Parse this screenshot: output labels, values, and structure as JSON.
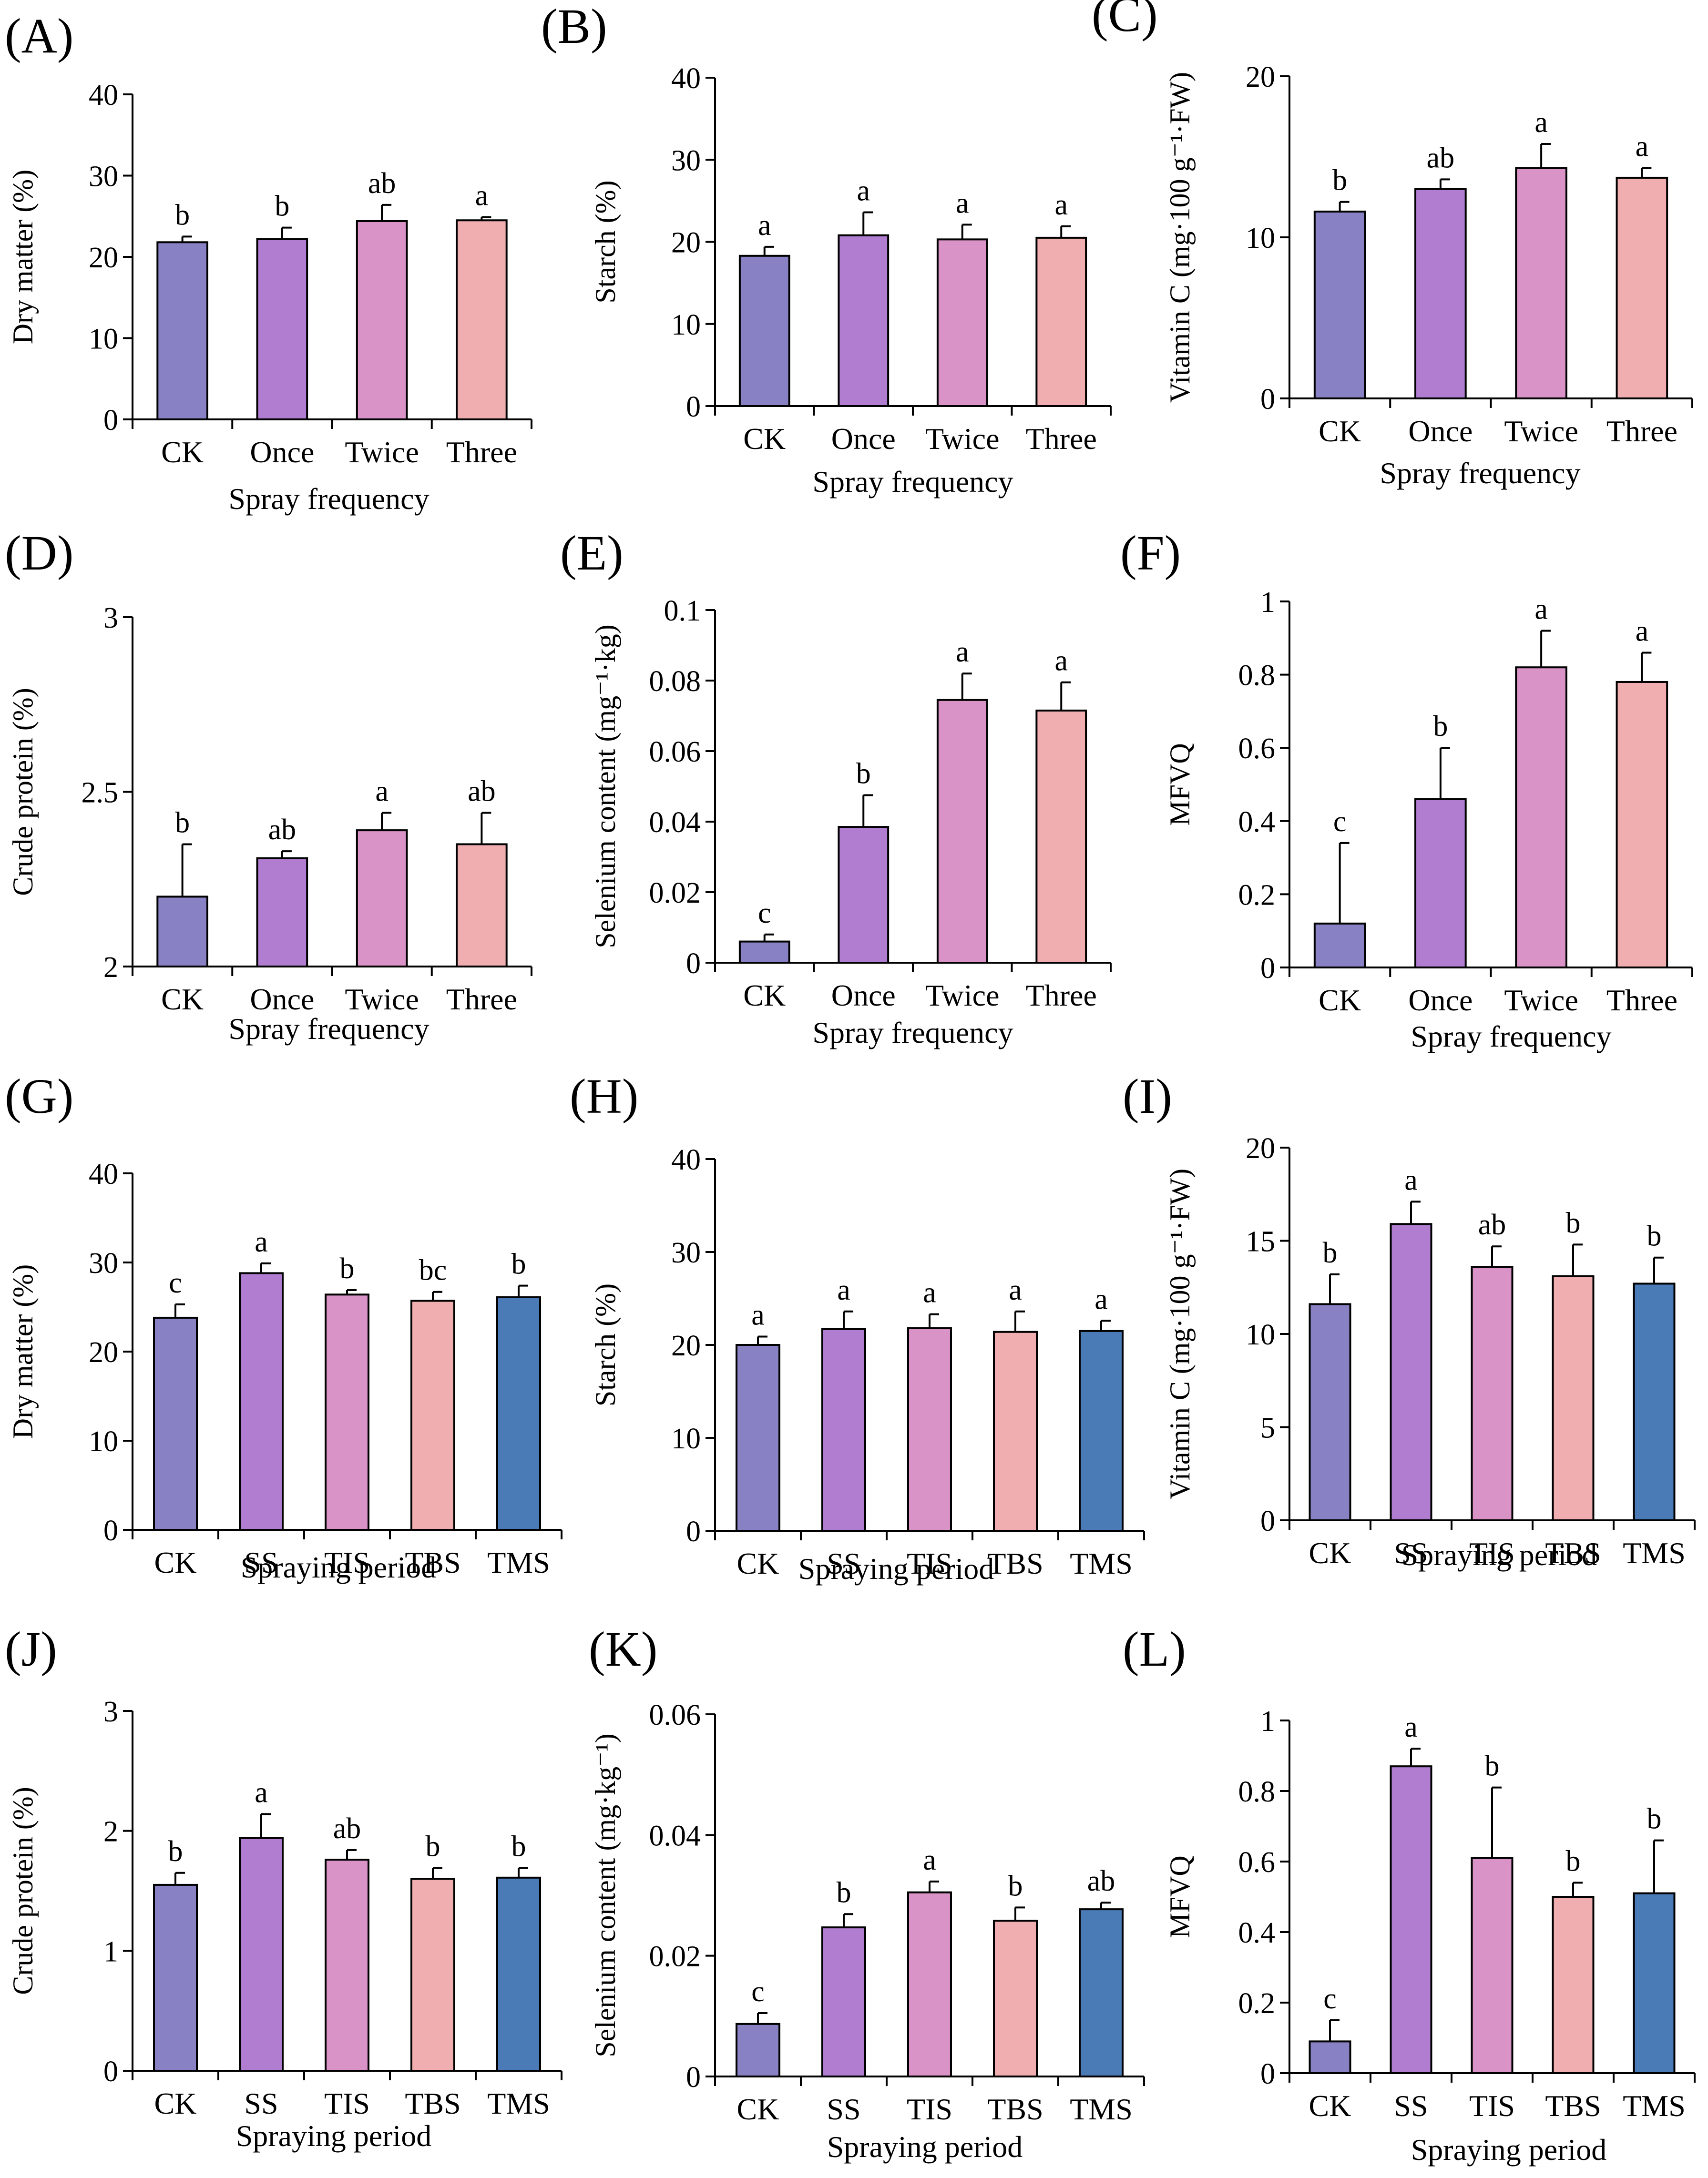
{
  "figure": {
    "panel_count": 12
  },
  "colors": {
    "CK": "#8882c4",
    "Once": "#b07dd1",
    "Twice": "#d993c7",
    "Three": "#f0aeb0",
    "SS": "#b07dd1",
    "TIS": "#d993c7",
    "TBS": "#f0aeb0",
    "TMS": "#4a7bb7"
  },
  "chart_data": [
    {
      "panel": "(A)",
      "type": "bar",
      "xlabel": "Spray frequency",
      "ylabel": "Dry matter (%)",
      "ylim": [
        0,
        40
      ],
      "yticks": [
        "0",
        "10",
        "20",
        "30",
        "40"
      ],
      "categories": [
        "CK",
        "Once",
        "Twice",
        "Three"
      ],
      "values": [
        21.8,
        22.2,
        24.4,
        24.5
      ],
      "errors": [
        0.7,
        1.4,
        2.0,
        0.4
      ],
      "letters": [
        "b",
        "b",
        "ab",
        "a"
      ]
    },
    {
      "panel": "(B)",
      "type": "bar",
      "xlabel": "Spray frequency",
      "ylabel": "Starch (%)",
      "ylim": [
        0,
        40
      ],
      "yticks": [
        "0",
        "10",
        "20",
        "30",
        "40"
      ],
      "categories": [
        "CK",
        "Once",
        "Twice",
        "Three"
      ],
      "values": [
        18.3,
        20.8,
        20.3,
        20.5
      ],
      "errors": [
        1.1,
        2.8,
        1.8,
        1.4
      ],
      "letters": [
        "a",
        "a",
        "a",
        "a"
      ]
    },
    {
      "panel": "(C)",
      "type": "bar",
      "xlabel": "Spray frequency",
      "ylabel": "Vitamin C (mg·100 g⁻¹·FW)",
      "ylim": [
        0,
        20
      ],
      "yticks": [
        "0",
        "10",
        "20"
      ],
      "categories": [
        "CK",
        "Once",
        "Twice",
        "Three"
      ],
      "values": [
        11.6,
        13.0,
        14.3,
        13.7
      ],
      "errors": [
        0.6,
        0.6,
        1.5,
        0.6
      ],
      "letters": [
        "b",
        "ab",
        "a",
        "a"
      ]
    },
    {
      "panel": "(D)",
      "type": "bar",
      "xlabel": "Spray frequency",
      "ylabel": "Crude protein (%)",
      "ylim": [
        2,
        3
      ],
      "yticks": [
        "2",
        "2.5",
        "3"
      ],
      "categories": [
        "CK",
        "Once",
        "Twice",
        "Three"
      ],
      "values": [
        2.2,
        2.31,
        2.39,
        2.35
      ],
      "errors": [
        0.15,
        0.02,
        0.05,
        0.09
      ],
      "letters": [
        "b",
        "ab",
        "a",
        "ab"
      ]
    },
    {
      "panel": "(E)",
      "type": "bar",
      "xlabel": "Spray frequency",
      "ylabel": "Selenium content (mg⁻¹·kg)",
      "ylim": [
        0,
        0.1
      ],
      "yticks": [
        "0",
        "0.02",
        "0.04",
        "0.06",
        "0.08",
        "0.1"
      ],
      "categories": [
        "CK",
        "Once",
        "Twice",
        "Three"
      ],
      "values": [
        0.006,
        0.0385,
        0.0745,
        0.0715
      ],
      "errors": [
        0.002,
        0.009,
        0.0075,
        0.008
      ],
      "letters": [
        "c",
        "b",
        "a",
        "a"
      ]
    },
    {
      "panel": "(F)",
      "type": "bar",
      "xlabel": "Spray frequency",
      "ylabel": "MFVQ",
      "ylim": [
        0,
        1
      ],
      "yticks": [
        "0",
        "0.2",
        "0.4",
        "0.6",
        "0.8",
        "1"
      ],
      "categories": [
        "CK",
        "Once",
        "Twice",
        "Three"
      ],
      "values": [
        0.12,
        0.46,
        0.82,
        0.78
      ],
      "errors": [
        0.22,
        0.14,
        0.1,
        0.08
      ],
      "letters": [
        "c",
        "b",
        "a",
        "a"
      ]
    },
    {
      "panel": "(G)",
      "type": "bar",
      "xlabel": "Spraying period",
      "ylabel": "Dry matter (%)",
      "ylim": [
        0,
        40
      ],
      "yticks": [
        "0",
        "10",
        "20",
        "30",
        "40"
      ],
      "categories": [
        "CK",
        "SS",
        "TIS",
        "TBS",
        "TMS"
      ],
      "values": [
        23.8,
        28.8,
        26.4,
        25.7,
        26.1
      ],
      "errors": [
        1.5,
        1.1,
        0.5,
        1.0,
        1.3
      ],
      "letters": [
        "c",
        "a",
        "b",
        "bc",
        "b"
      ]
    },
    {
      "panel": "(H)",
      "type": "bar",
      "xlabel": "Spraying period",
      "ylabel": "Starch (%)",
      "ylim": [
        0,
        40
      ],
      "yticks": [
        "0",
        "10",
        "20",
        "30",
        "40"
      ],
      "categories": [
        "CK",
        "SS",
        "TIS",
        "TBS",
        "TMS"
      ],
      "values": [
        20.0,
        21.7,
        21.8,
        21.4,
        21.5
      ],
      "errors": [
        0.9,
        1.9,
        1.5,
        2.2,
        1.1
      ],
      "letters": [
        "a",
        "a",
        "a",
        "a",
        "a"
      ]
    },
    {
      "panel": "(I)",
      "type": "bar",
      "xlabel": "Spraying period",
      "ylabel": "Vitamin C (mg·100 g⁻¹·FW)",
      "ylim": [
        0,
        20
      ],
      "yticks": [
        "0",
        "5",
        "10",
        "15",
        "20"
      ],
      "categories": [
        "CK",
        "SS",
        "TIS",
        "TBS",
        "TMS"
      ],
      "values": [
        11.6,
        15.9,
        13.6,
        13.1,
        12.7
      ],
      "errors": [
        1.6,
        1.2,
        1.1,
        1.7,
        1.4
      ],
      "letters": [
        "b",
        "a",
        "ab",
        "b",
        "b"
      ]
    },
    {
      "panel": "(J)",
      "type": "bar",
      "xlabel": "Spraying period",
      "ylabel": "Crude protein (%)",
      "ylim": [
        0,
        3
      ],
      "yticks": [
        "0",
        "1",
        "2",
        "3"
      ],
      "categories": [
        "CK",
        "SS",
        "TIS",
        "TBS",
        "TMS"
      ],
      "values": [
        1.55,
        1.94,
        1.76,
        1.6,
        1.61
      ],
      "errors": [
        0.1,
        0.2,
        0.08,
        0.09,
        0.08
      ],
      "letters": [
        "b",
        "a",
        "ab",
        "b",
        "b"
      ]
    },
    {
      "panel": "(K)",
      "type": "bar",
      "xlabel": "Spraying period",
      "ylabel": "Selenium content (mg·kg⁻¹)",
      "ylim": [
        0,
        0.06
      ],
      "yticks": [
        "0",
        "0.02",
        "0.04",
        "0.06"
      ],
      "categories": [
        "CK",
        "SS",
        "TIS",
        "TBS",
        "TMS"
      ],
      "values": [
        0.0087,
        0.0247,
        0.0305,
        0.0258,
        0.0277
      ],
      "errors": [
        0.0018,
        0.0022,
        0.0018,
        0.0022,
        0.0011
      ],
      "letters": [
        "c",
        "b",
        "a",
        "b",
        "ab"
      ]
    },
    {
      "panel": "(L)",
      "type": "bar",
      "xlabel": "Spraying period",
      "ylabel": "MFVQ",
      "ylim": [
        0,
        1
      ],
      "yticks": [
        "0",
        "0.2",
        "0.4",
        "0.6",
        "0.8",
        "1"
      ],
      "categories": [
        "CK",
        "SS",
        "TIS",
        "TBS",
        "TMS"
      ],
      "values": [
        0.09,
        0.87,
        0.61,
        0.5,
        0.51
      ],
      "errors": [
        0.06,
        0.05,
        0.2,
        0.04,
        0.15
      ],
      "letters": [
        "c",
        "a",
        "b",
        "b",
        "b"
      ]
    }
  ]
}
